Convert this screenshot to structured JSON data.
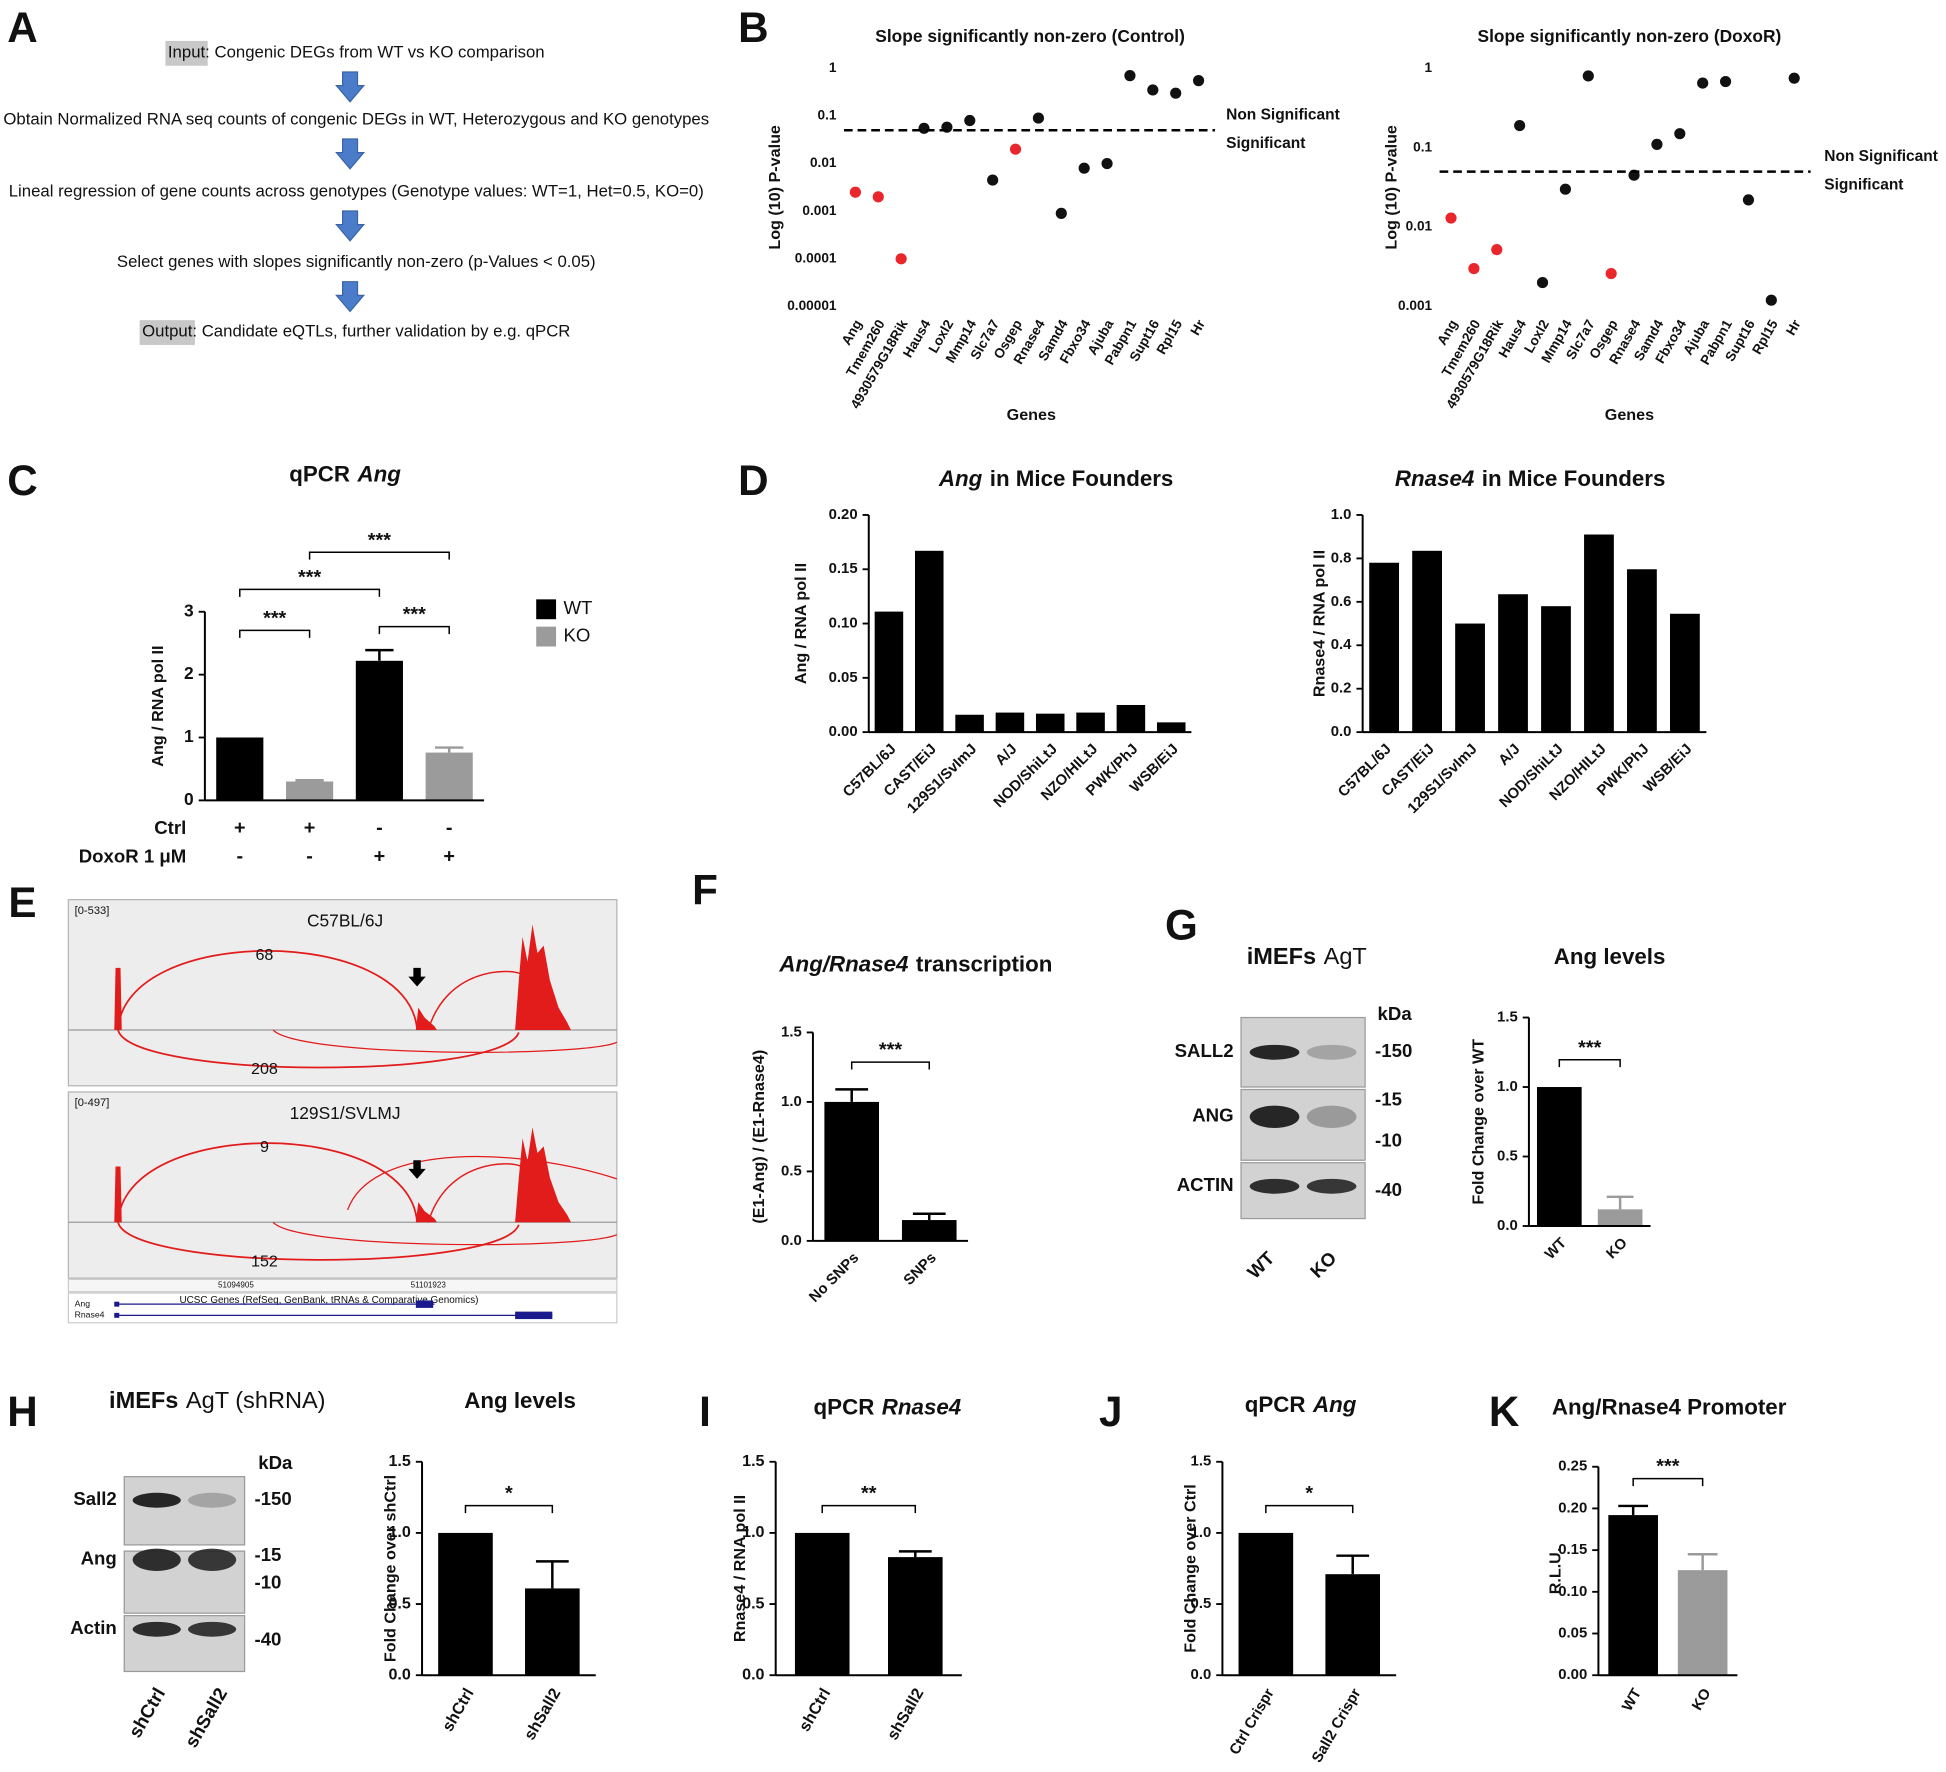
{
  "panels": [
    "A",
    "B",
    "C",
    "D",
    "E",
    "F",
    "G",
    "H",
    "I",
    "J",
    "K"
  ],
  "flowchart": {
    "steps": [
      {
        "label": "Input",
        "text": ": Congenic DEGs from WT vs KO comparison"
      },
      {
        "text": "Obtain Normalized RNA seq counts of congenic DEGs in WT, Heterozygous and KO genotypes"
      },
      {
        "text": "Lineal regression of gene counts across genotypes (Genotype values: WT=1, Het=0.5, KO=0)"
      },
      {
        "text": "Select genes with slopes significantly non-zero (p-Values < 0.05)"
      },
      {
        "label": "Output",
        "text": ": Candidate eQTLs, further validation by e.g. qPCR"
      }
    ]
  },
  "chart_data": [
    {
      "type": "scatter",
      "title": "Slope significantly non-zero (Control)",
      "x_label": "Genes",
      "y_label": "Log (10)  P-value",
      "log_y": true,
      "categories": [
        "Ang",
        "Tmem260",
        "4930579G18Rik",
        "Haus4",
        "Loxl2",
        "Mmp14",
        "Slc7a7",
        "Osgep",
        "Rnase4",
        "Samd4",
        "Fbxo34",
        "Ajuba",
        "Pabpn1",
        "Supt16",
        "Rpl15",
        "Hr"
      ],
      "values": [
        0.0025,
        0.002,
        0.0001,
        0.055,
        0.058,
        0.08,
        0.0045,
        0.02,
        0.09,
        0.0009,
        0.008,
        0.01,
        0.7,
        0.35,
        0.3,
        0.55
      ],
      "colors": [
        "#e8262b",
        "#e8262b",
        "#e8262b",
        "#111111",
        "#111111",
        "#111111",
        "#111111",
        "#e8262b",
        "#111111",
        "#111111",
        "#111111",
        "#111111",
        "#111111",
        "#111111",
        "#111111",
        "#111111"
      ],
      "ylim": [
        1e-05,
        1
      ],
      "yticks": [
        1,
        0.1,
        0.01,
        0.001,
        0.0001,
        1e-05
      ],
      "threshold": 0.05,
      "threshold_labels": [
        "Non Significant",
        "Significant"
      ]
    },
    {
      "type": "scatter",
      "title": "Slope significantly non-zero (DoxoR)",
      "x_label": "Genes",
      "y_label": "Log (10)  P-value",
      "log_y": true,
      "categories": [
        "Ang",
        "Tmem260",
        "4930579G18Rik",
        "Haus4",
        "Loxl2",
        "Mmp14",
        "Slc7a7",
        "Osgep",
        "Rnase4",
        "Samd4",
        "Fbxo34",
        "Ajuba",
        "Pabpn1",
        "Supt16",
        "Rpl15",
        "Hr"
      ],
      "values": [
        0.013,
        0.003,
        0.0052,
        0.19,
        0.002,
        0.03,
        0.8,
        0.0026,
        0.045,
        0.11,
        0.15,
        0.65,
        0.68,
        0.022,
        0.0012,
        0.75
      ],
      "colors": [
        "#e8262b",
        "#e8262b",
        "#e8262b",
        "#111111",
        "#111111",
        "#111111",
        "#111111",
        "#e8262b",
        "#111111",
        "#111111",
        "#111111",
        "#111111",
        "#111111",
        "#111111",
        "#111111",
        "#111111"
      ],
      "ylim": [
        0.001,
        1
      ],
      "yticks": [
        1,
        0.1,
        0.01,
        0.001
      ],
      "threshold": 0.05,
      "threshold_labels": [
        "Non Significant",
        "Significant"
      ]
    },
    {
      "type": "bar",
      "title_parts": [
        {
          "text": "qPCR",
          "italic": false
        },
        {
          "text": "Ang",
          "italic": true
        }
      ],
      "y_label": "Ang / RNA pol II",
      "categories": [
        null,
        null,
        null,
        null
      ],
      "series": [
        {
          "name": "WT",
          "color": "#000000",
          "values": [
            1.0,
            null,
            2.22,
            null
          ],
          "errors": [
            null,
            null,
            0.17,
            null
          ]
        },
        {
          "name": "KO",
          "color": "#9b9b9b",
          "values": [
            null,
            0.3,
            null,
            0.76
          ],
          "errors": [
            null,
            0.02,
            null,
            0.08
          ]
        }
      ],
      "ylim": [
        0,
        3
      ],
      "yticks": [
        0,
        1,
        2,
        3
      ],
      "conditions": [
        {
          "name": "Ctrl",
          "values": [
            "+",
            "+",
            "-",
            "-"
          ]
        },
        {
          "name": "DoxoR 1 μM",
          "values": [
            "-",
            "-",
            "+",
            "+"
          ]
        }
      ],
      "significance": [
        "***",
        "***",
        "***",
        "***"
      ]
    },
    {
      "type": "bar",
      "title_parts": [
        {
          "text": "Ang",
          "italic": true
        },
        {
          "text": "in Mice Founders",
          "italic": false
        }
      ],
      "y_label": "Ang / RNA pol II",
      "categories": [
        "C57BL/6J",
        "CAST/EiJ",
        "129S1/SvImJ",
        "A/J",
        "NOD/ShiLtJ",
        "NZO/HILtJ",
        "PWK/PhJ",
        "WSB/EiJ"
      ],
      "values": [
        0.111,
        0.167,
        0.016,
        0.018,
        0.017,
        0.018,
        0.025,
        0.009
      ],
      "color": "#000000",
      "ylim": [
        0,
        0.2
      ],
      "yticks": [
        {
          "value": 0,
          "label": "0.00"
        },
        {
          "value": 0.05,
          "label": "0.05"
        },
        {
          "value": 0.1,
          "label": "0.10"
        },
        {
          "value": 0.15,
          "label": "0.15"
        },
        {
          "value": 0.2,
          "label": "0.20"
        }
      ]
    },
    {
      "type": "bar",
      "title_parts": [
        {
          "text": "Rnase4",
          "italic": true
        },
        {
          "text": "in Mice Founders",
          "italic": false
        }
      ],
      "y_label": "Rnase4 / RNA pol II",
      "categories": [
        "C57BL/6J",
        "CAST/EiJ",
        "129S1/SvImJ",
        "A/J",
        "NOD/ShiLtJ",
        "NZO/HILtJ",
        "PWK/PhJ",
        "WSB/EiJ"
      ],
      "values": [
        0.78,
        0.835,
        0.5,
        0.635,
        0.58,
        0.91,
        0.75,
        0.545
      ],
      "color": "#000000",
      "ylim": [
        0,
        1
      ],
      "yticks": [
        {
          "value": 0,
          "label": "0.0"
        },
        {
          "value": 0.2,
          "label": "0.2"
        },
        {
          "value": 0.4,
          "label": "0.4"
        },
        {
          "value": 0.6,
          "label": "0.6"
        },
        {
          "value": 0.8,
          "label": "0.8"
        },
        {
          "value": 1,
          "label": "1.0"
        }
      ]
    },
    {
      "type": "bar",
      "title_parts": [
        {
          "text": "Ang/Rnase4",
          "italic": true
        },
        {
          "text": "transcription",
          "italic": false
        }
      ],
      "y_label": "(E1-Ang) / (E1-Rnase4)",
      "categories": [
        "No SNPs",
        "SNPs"
      ],
      "values": [
        1.0,
        0.15
      ],
      "errors": [
        0.09,
        0.045
      ],
      "color": "#000000",
      "ylim": [
        0,
        1.5
      ],
      "yticks": [
        {
          "value": 0,
          "label": "0.0"
        },
        {
          "value": 0.5,
          "label": "0.5"
        },
        {
          "value": 1,
          "label": "1.0"
        },
        {
          "value": 1.5,
          "label": "1.5"
        }
      ],
      "significance": "***"
    },
    {
      "type": "bar",
      "title": "Ang levels",
      "y_label": "Fold Change over WT",
      "categories": [
        "WT",
        "KO"
      ],
      "values": [
        1.0,
        0.12
      ],
      "errors": [
        null,
        0.09
      ],
      "colors": [
        "#000000",
        "#9b9b9b"
      ],
      "ylim": [
        0,
        1.5
      ],
      "yticks": [
        {
          "value": 0,
          "label": "0.0"
        },
        {
          "value": 0.5,
          "label": "0.5"
        },
        {
          "value": 1,
          "label": "1.0"
        },
        {
          "value": 1.5,
          "label": "1.5"
        }
      ],
      "significance": "***"
    },
    {
      "type": "bar",
      "title": "Ang levels",
      "y_label": "Fold Change over shCtrl",
      "categories": [
        "shCtrl",
        "shSall2"
      ],
      "values": [
        1.0,
        0.61
      ],
      "errors": [
        null,
        0.19
      ],
      "color": "#000000",
      "ylim": [
        0,
        1.5
      ],
      "yticks": [
        {
          "value": 0,
          "label": "0.0"
        },
        {
          "value": 0.5,
          "label": "0.5"
        },
        {
          "value": 1,
          "label": "1.0"
        },
        {
          "value": 1.5,
          "label": "1.5"
        }
      ],
      "significance": "*"
    },
    {
      "type": "bar",
      "title_parts": [
        {
          "text": "qPCR",
          "italic": false
        },
        {
          "text": "Rnase4",
          "italic": true
        }
      ],
      "y_label": "Rnase4 / RNA pol II",
      "categories": [
        "shCtrl",
        "shSall2"
      ],
      "values": [
        1.0,
        0.83
      ],
      "errors": [
        null,
        0.04
      ],
      "color": "#000000",
      "ylim": [
        0,
        1.5
      ],
      "yticks": [
        {
          "value": 0,
          "label": "0.0"
        },
        {
          "value": 0.5,
          "label": "0.5"
        },
        {
          "value": 1,
          "label": "1.0"
        },
        {
          "value": 1.5,
          "label": "1.5"
        }
      ],
      "significance": "**"
    },
    {
      "type": "bar",
      "title_parts": [
        {
          "text": "qPCR",
          "italic": false
        },
        {
          "text": "Ang",
          "italic": true
        }
      ],
      "y_label": "Fold Change over Ctrl",
      "categories": [
        "Ctrl Crispr",
        "Sall2 Crispr"
      ],
      "values": [
        1.0,
        0.71
      ],
      "errors": [
        null,
        0.13
      ],
      "color": "#000000",
      "ylim": [
        0,
        1.5
      ],
      "yticks": [
        {
          "value": 0,
          "label": "0.0"
        },
        {
          "value": 0.5,
          "label": "0.5"
        },
        {
          "value": 1,
          "label": "1.0"
        },
        {
          "value": 1.5,
          "label": "1.5"
        }
      ],
      "significance": "*"
    },
    {
      "type": "bar",
      "title": "Ang/Rnase4 Promoter",
      "y_label": "R.L.U.",
      "categories": [
        "WT",
        "KO"
      ],
      "values": [
        0.192,
        0.126
      ],
      "errors": [
        0.011,
        0.019
      ],
      "colors": [
        "#000000",
        "#9b9b9b"
      ],
      "ylim": [
        0,
        0.25
      ],
      "yticks": [
        {
          "value": 0,
          "label": "0.00"
        },
        {
          "value": 0.05,
          "label": "0.05"
        },
        {
          "value": 0.1,
          "label": "0.10"
        },
        {
          "value": 0.15,
          "label": "0.15"
        },
        {
          "value": 0.2,
          "label": "0.20"
        },
        {
          "value": 0.25,
          "label": "0.25"
        }
      ],
      "significance": "***"
    }
  ],
  "sashimi": {
    "tracks": [
      {
        "range": "[0-533]",
        "sample": "C57BL/6J",
        "junctions": [
          68,
          208
        ]
      },
      {
        "range": "[0-497]",
        "sample": "129S1/SVLMJ",
        "junctions": [
          9,
          152
        ]
      }
    ],
    "coordinates": [
      51094905,
      51101923
    ],
    "annotation": "UCSC Genes (RefSeq, GenBank, tRNAs & Comparative Genomics)",
    "genes": [
      "Ang",
      "Rnase4"
    ]
  },
  "blots": [
    {
      "header": [
        {
          "text": "iMEFs",
          "bold": true
        },
        {
          "text": "AgT",
          "bold": false
        }
      ],
      "unit": "kDa",
      "rows": [
        {
          "name": "SALL2",
          "markers": [
            "-150"
          ]
        },
        {
          "name": "ANG",
          "markers": [
            "-15",
            "-10"
          ]
        },
        {
          "name": "ACTIN",
          "markers": [
            "-40"
          ]
        }
      ],
      "lanes": [
        "WT",
        "KO"
      ]
    },
    {
      "header": [
        {
          "text": "iMEFs",
          "bold": true
        },
        {
          "text": "AgT (shRNA)",
          "bold": false
        }
      ],
      "unit": "kDa",
      "rows": [
        {
          "name": "Sall2",
          "markers": [
            "-150"
          ]
        },
        {
          "name": "Ang",
          "markers": [
            "-15",
            "-10"
          ]
        },
        {
          "name": "Actin",
          "markers": [
            "-40"
          ]
        }
      ],
      "lanes": [
        "shCtrl",
        "shSall2"
      ]
    }
  ]
}
